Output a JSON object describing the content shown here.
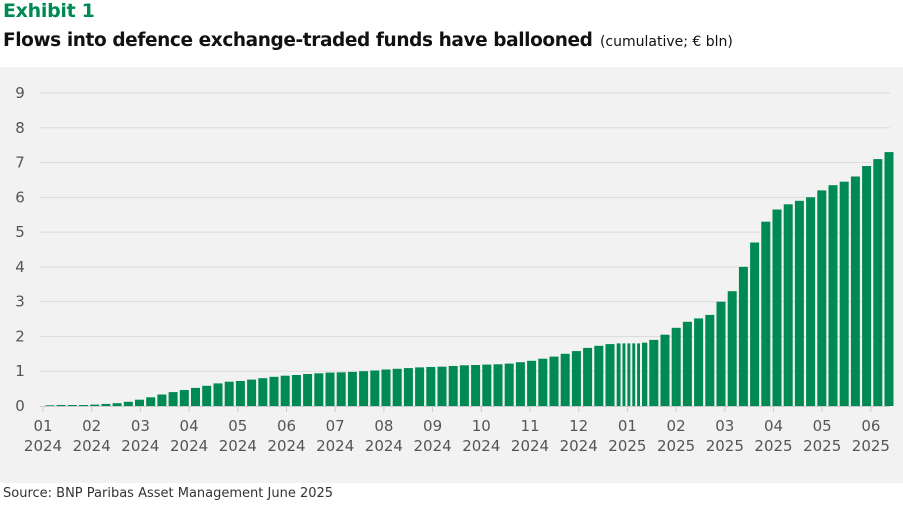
{
  "header": {
    "exhibit": "Exhibit 1",
    "title": "Flows into defence exchange-traded funds have ballooned",
    "subtitle": "(cumulative; € bln)"
  },
  "footer": {
    "source": "Source: BNP Paribas Asset Management  June 2025"
  },
  "colors": {
    "bar": "#008a53",
    "exhibit": "#008a53",
    "panel": "#f2f2f2",
    "grid": "#dcdcdc"
  },
  "chart_data": {
    "type": "bar",
    "title": "Flows into defence exchange-traded funds have ballooned",
    "subtitle": "(cumulative; € bln)",
    "xlabel": "",
    "ylabel": "",
    "ylim": [
      0,
      9
    ],
    "grid": true,
    "y_ticks": [
      "0",
      "1",
      "2",
      "3",
      "4",
      "5",
      "6",
      "7",
      "8",
      "9"
    ],
    "x_ticks": [
      {
        "month": "01",
        "year": "2024"
      },
      {
        "month": "02",
        "year": "2024"
      },
      {
        "month": "03",
        "year": "2024"
      },
      {
        "month": "04",
        "year": "2024"
      },
      {
        "month": "05",
        "year": "2024"
      },
      {
        "month": "06",
        "year": "2024"
      },
      {
        "month": "07",
        "year": "2024"
      },
      {
        "month": "08",
        "year": "2024"
      },
      {
        "month": "09",
        "year": "2024"
      },
      {
        "month": "10",
        "year": "2024"
      },
      {
        "month": "11",
        "year": "2024"
      },
      {
        "month": "12",
        "year": "2024"
      },
      {
        "month": "01",
        "year": "2025"
      },
      {
        "month": "02",
        "year": "2025"
      },
      {
        "month": "03",
        "year": "2025"
      },
      {
        "month": "04",
        "year": "2025"
      },
      {
        "month": "05",
        "year": "2025"
      },
      {
        "month": "06",
        "year": "2025"
      }
    ],
    "series": [
      {
        "name": "Cumulative flows (€ bln)",
        "x_unit": "months since 2024-01",
        "x": [
          0.05,
          0.28,
          0.51,
          0.74,
          0.97,
          1.2,
          1.43,
          1.66,
          1.89,
          2.12,
          2.35,
          2.58,
          2.81,
          3.04,
          3.27,
          3.5,
          3.73,
          3.96,
          4.19,
          4.42,
          4.65,
          4.88,
          5.11,
          5.34,
          5.57,
          5.8,
          6.03,
          6.26,
          6.49,
          6.72,
          6.95,
          7.18,
          7.41,
          7.64,
          7.87,
          8.1,
          8.33,
          8.56,
          8.79,
          9.02,
          9.25,
          9.48,
          9.71,
          9.94,
          10.17,
          10.4,
          10.63,
          10.86,
          11.09,
          11.32,
          11.55,
          11.78,
          11.9,
          12.0,
          12.1,
          12.2,
          12.3,
          12.45,
          12.68,
          12.91,
          13.14,
          13.37,
          13.6,
          13.83,
          14.06,
          14.29,
          14.52,
          14.75,
          14.98,
          15.21,
          15.44,
          15.67,
          15.9,
          16.13,
          16.36,
          16.59,
          16.82,
          17.05,
          17.28
        ],
        "values": [
          0.02,
          0.03,
          0.03,
          0.03,
          0.04,
          0.06,
          0.08,
          0.12,
          0.18,
          0.25,
          0.33,
          0.4,
          0.46,
          0.52,
          0.58,
          0.65,
          0.7,
          0.72,
          0.76,
          0.8,
          0.84,
          0.87,
          0.89,
          0.92,
          0.94,
          0.96,
          0.97,
          0.98,
          1.0,
          1.02,
          1.05,
          1.07,
          1.09,
          1.11,
          1.12,
          1.13,
          1.15,
          1.17,
          1.18,
          1.19,
          1.2,
          1.22,
          1.26,
          1.3,
          1.36,
          1.42,
          1.5,
          1.58,
          1.67,
          1.73,
          1.78,
          1.8,
          1.8,
          1.8,
          1.8,
          1.8,
          1.82,
          1.9,
          2.05,
          2.25,
          2.42,
          2.52,
          2.62,
          3.0,
          3.3,
          4.0,
          4.7,
          5.3,
          5.65,
          5.8,
          5.9,
          6.0,
          6.2,
          6.35,
          6.45,
          6.6,
          6.9,
          7.1,
          7.3
        ]
      }
    ]
  }
}
